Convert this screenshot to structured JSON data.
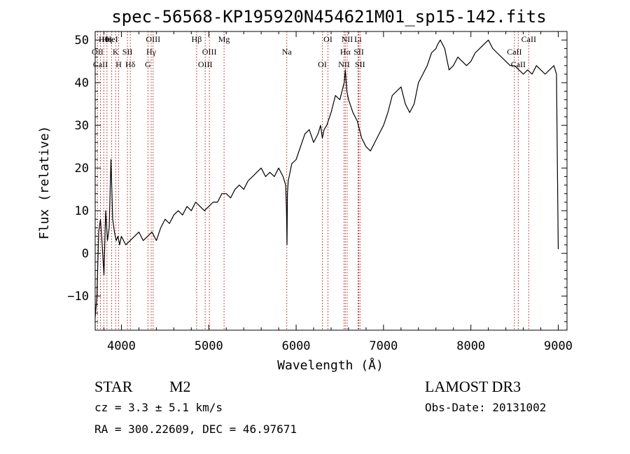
{
  "chart_data": {
    "type": "line",
    "title": "spec-56568-KP195920N454621M01_sp15-142.fits",
    "xlabel": "Wavelength (Å)",
    "ylabel": "Flux (relative)",
    "xlim": [
      3700,
      9100
    ],
    "ylim": [
      -18,
      52
    ],
    "xticks": [
      4000,
      5000,
      6000,
      7000,
      8000,
      9000
    ],
    "xtick_labels": [
      "4000",
      "5000",
      "6000",
      "7000",
      "8000",
      "9000"
    ],
    "yticks": [
      -10,
      0,
      10,
      20,
      30,
      40,
      50
    ],
    "ytick_labels": [
      "−10",
      "0",
      "10",
      "20",
      "30",
      "40",
      "50"
    ],
    "grid": false,
    "series": [
      {
        "name": "spectrum",
        "x": [
          3700,
          3720,
          3740,
          3760,
          3780,
          3800,
          3820,
          3840,
          3860,
          3880,
          3900,
          3920,
          3940,
          3960,
          3980,
          4000,
          4050,
          4100,
          4150,
          4200,
          4250,
          4300,
          4350,
          4400,
          4450,
          4500,
          4550,
          4600,
          4650,
          4700,
          4750,
          4800,
          4850,
          4900,
          4950,
          5000,
          5050,
          5100,
          5150,
          5200,
          5250,
          5300,
          5350,
          5400,
          5450,
          5500,
          5550,
          5600,
          5650,
          5700,
          5750,
          5800,
          5850,
          5880,
          5890,
          5895,
          5900,
          5910,
          5920,
          5950,
          6000,
          6050,
          6100,
          6150,
          6200,
          6250,
          6280,
          6300,
          6320,
          6350,
          6400,
          6450,
          6500,
          6550,
          6563,
          6580,
          6600,
          6650,
          6700,
          6750,
          6800,
          6850,
          6900,
          6950,
          7000,
          7050,
          7100,
          7150,
          7200,
          7250,
          7300,
          7350,
          7400,
          7450,
          7500,
          7550,
          7600,
          7620,
          7650,
          7700,
          7750,
          7800,
          7850,
          7900,
          7950,
          8000,
          8050,
          8100,
          8150,
          8200,
          8250,
          8300,
          8350,
          8400,
          8450,
          8500,
          8550,
          8600,
          8650,
          8700,
          8750,
          8800,
          8850,
          8900,
          8950,
          8980,
          8990,
          9000
        ],
        "y": [
          -15,
          -10,
          5,
          8,
          2,
          -5,
          10,
          3,
          6,
          22,
          8,
          5,
          3,
          4,
          2,
          4,
          2,
          3,
          4,
          5,
          3,
          4,
          5,
          3,
          6,
          8,
          7,
          9,
          10,
          9,
          11,
          10,
          12,
          11,
          10,
          11,
          12,
          12,
          14,
          14,
          13,
          15,
          16,
          15,
          17,
          18,
          19,
          20,
          18,
          19,
          18,
          20,
          18,
          16,
          10,
          2,
          14,
          17,
          18,
          21,
          22,
          25,
          28,
          29,
          26,
          28,
          30,
          27,
          29,
          30,
          33,
          37,
          36,
          40,
          43,
          38,
          36,
          33,
          31,
          27,
          25,
          24,
          26,
          28,
          30,
          33,
          37,
          38,
          39,
          35,
          33,
          35,
          40,
          42,
          44,
          47,
          48,
          49,
          50,
          48,
          43,
          44,
          46,
          45,
          44,
          45,
          47,
          48,
          49,
          50,
          48,
          47,
          46,
          45,
          44,
          44,
          43,
          42,
          43,
          42,
          44,
          43,
          42,
          43,
          44,
          42,
          20,
          1
        ]
      }
    ],
    "lines": [
      {
        "label": "Hθ",
        "x": 3798
      },
      {
        "label": "OII",
        "x": 3727
      },
      {
        "label": "CaII",
        "x": 3760
      },
      {
        "label": "Hη",
        "x": 3835
      },
      {
        "label": "K",
        "x": 3934
      },
      {
        "label": "H",
        "x": 3969
      },
      {
        "label": "HeI",
        "x": 3889
      },
      {
        "label": "SII",
        "x": 4069
      },
      {
        "label": "Hδ",
        "x": 4102
      },
      {
        "label": "OIII",
        "x": 4363
      },
      {
        "label": "Hγ",
        "x": 4341
      },
      {
        "label": "G",
        "x": 4304
      },
      {
        "label": "Hβ",
        "x": 4861
      },
      {
        "label": "OIII",
        "x": 5007
      },
      {
        "label": "OIII",
        "x": 4959
      },
      {
        "label": "Mg",
        "x": 5175
      },
      {
        "label": "Na",
        "x": 5893
      },
      {
        "label": "OI",
        "x": 6300
      },
      {
        "label": "OI",
        "x": 6364
      },
      {
        "label": "Hα",
        "x": 6563
      },
      {
        "label": "NII",
        "x": 6548
      },
      {
        "label": "NII",
        "x": 6584
      },
      {
        "label": "SII",
        "x": 6717
      },
      {
        "label": "SII",
        "x": 6731
      },
      {
        "label": "Li",
        "x": 6708
      },
      {
        "label": "CaII",
        "x": 8498
      },
      {
        "label": "CaII",
        "x": 8542
      },
      {
        "label": "CaII",
        "x": 8662
      }
    ]
  },
  "info": {
    "object_class": "STAR",
    "subclass": "M2",
    "survey": "LAMOST DR3",
    "cz": "cz = 3.3 ± 5.1 km/s",
    "obs_date": "Obs-Date: 20131002",
    "coords": "RA = 300.22609, DEC =  46.97671"
  }
}
